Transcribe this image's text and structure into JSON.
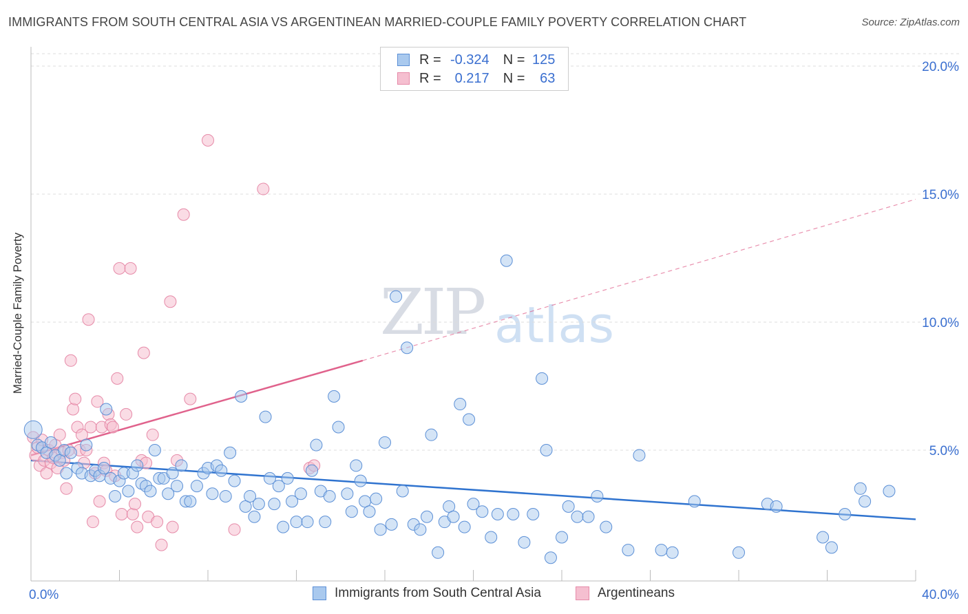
{
  "header": {
    "title": "IMMIGRANTS FROM SOUTH CENTRAL ASIA VS ARGENTINEAN MARRIED-COUPLE FAMILY POVERTY CORRELATION CHART",
    "source": "Source: ZipAtlas.com"
  },
  "watermark": {
    "zip": "ZIP",
    "atlas": "atlas"
  },
  "legend": {
    "r_label": "R =",
    "n_label": "N =",
    "series1": {
      "r": "-0.324",
      "n": "125"
    },
    "series2": {
      "r": "0.217",
      "n": "63"
    }
  },
  "colors": {
    "series1_fill": "#a9c9ee",
    "series1_stroke": "#5b8fd6",
    "series1_line": "#2f73cf",
    "series2_fill": "#f5bfd0",
    "series2_stroke": "#e68aa8",
    "series2_line": "#e0628c",
    "tick_label": "#3a6fd0",
    "grid": "#dddddd"
  },
  "chart_data": {
    "type": "scatter",
    "title": "IMMIGRANTS FROM SOUTH CENTRAL ASIA VS ARGENTINEAN MARRIED-COUPLE FAMILY POVERTY CORRELATION CHART",
    "xlabel": "",
    "ylabel": "Married-Couple Family Poverty",
    "xlim": [
      0,
      40
    ],
    "ylim": [
      0,
      21
    ],
    "x_tick_labels": [
      "0.0%",
      "40.0%"
    ],
    "y_ticks": [
      5,
      10,
      15,
      20
    ],
    "y_tick_labels": [
      "5.0%",
      "10.0%",
      "15.0%",
      "20.0%"
    ],
    "grid": "horizontal dashed",
    "legend_placement": "top-center",
    "series": [
      {
        "name": "Immigrants from South Central Asia",
        "r": -0.324,
        "n": 125,
        "trend": {
          "x": [
            0,
            40
          ],
          "y": [
            4.6,
            2.3
          ]
        },
        "points": [
          [
            0.1,
            5.8
          ],
          [
            0.3,
            5.2
          ],
          [
            0.5,
            5.1
          ],
          [
            0.7,
            4.9
          ],
          [
            0.9,
            5.3
          ],
          [
            1.1,
            4.8
          ],
          [
            1.3,
            4.6
          ],
          [
            1.5,
            5.0
          ],
          [
            1.6,
            4.1
          ],
          [
            1.8,
            4.9
          ],
          [
            2.1,
            4.3
          ],
          [
            2.3,
            4.1
          ],
          [
            2.5,
            5.2
          ],
          [
            2.7,
            4.0
          ],
          [
            2.9,
            4.2
          ],
          [
            3.1,
            4.0
          ],
          [
            3.3,
            4.3
          ],
          [
            3.4,
            6.6
          ],
          [
            3.6,
            3.9
          ],
          [
            3.8,
            3.2
          ],
          [
            4.0,
            3.8
          ],
          [
            4.2,
            4.1
          ],
          [
            4.4,
            3.4
          ],
          [
            4.6,
            4.1
          ],
          [
            4.8,
            4.4
          ],
          [
            5.0,
            3.7
          ],
          [
            5.2,
            3.6
          ],
          [
            5.4,
            3.4
          ],
          [
            5.6,
            5.0
          ],
          [
            5.8,
            3.9
          ],
          [
            6.0,
            3.9
          ],
          [
            6.2,
            3.3
          ],
          [
            6.4,
            4.1
          ],
          [
            6.6,
            3.6
          ],
          [
            6.8,
            4.4
          ],
          [
            7.0,
            3.0
          ],
          [
            7.2,
            3.0
          ],
          [
            7.5,
            3.6
          ],
          [
            7.8,
            4.1
          ],
          [
            8.0,
            4.3
          ],
          [
            8.2,
            3.3
          ],
          [
            8.4,
            4.4
          ],
          [
            8.6,
            4.2
          ],
          [
            8.8,
            3.2
          ],
          [
            9.0,
            4.9
          ],
          [
            9.2,
            3.8
          ],
          [
            9.5,
            7.1
          ],
          [
            9.7,
            2.8
          ],
          [
            9.9,
            3.2
          ],
          [
            10.1,
            2.4
          ],
          [
            10.3,
            2.9
          ],
          [
            10.6,
            6.3
          ],
          [
            10.8,
            3.9
          ],
          [
            11.0,
            2.9
          ],
          [
            11.2,
            3.6
          ],
          [
            11.4,
            2.0
          ],
          [
            11.6,
            3.9
          ],
          [
            11.8,
            3.0
          ],
          [
            12.0,
            2.2
          ],
          [
            12.2,
            3.3
          ],
          [
            12.5,
            2.2
          ],
          [
            12.7,
            4.2
          ],
          [
            12.9,
            5.2
          ],
          [
            13.1,
            3.4
          ],
          [
            13.3,
            2.2
          ],
          [
            13.5,
            3.2
          ],
          [
            13.7,
            7.1
          ],
          [
            13.9,
            5.9
          ],
          [
            14.3,
            3.3
          ],
          [
            14.5,
            2.6
          ],
          [
            14.7,
            4.4
          ],
          [
            14.9,
            3.8
          ],
          [
            15.1,
            3.0
          ],
          [
            15.3,
            2.6
          ],
          [
            15.6,
            3.1
          ],
          [
            15.8,
            1.9
          ],
          [
            16.0,
            5.3
          ],
          [
            16.3,
            2.1
          ],
          [
            16.5,
            11.0
          ],
          [
            16.8,
            3.4
          ],
          [
            17.0,
            9.0
          ],
          [
            17.3,
            2.1
          ],
          [
            17.6,
            1.9
          ],
          [
            17.9,
            2.4
          ],
          [
            18.1,
            5.6
          ],
          [
            18.4,
            1.0
          ],
          [
            18.7,
            2.2
          ],
          [
            18.9,
            2.8
          ],
          [
            19.1,
            2.4
          ],
          [
            19.4,
            6.8
          ],
          [
            19.6,
            2.0
          ],
          [
            19.8,
            6.2
          ],
          [
            20.0,
            2.9
          ],
          [
            20.4,
            2.6
          ],
          [
            20.8,
            1.6
          ],
          [
            21.1,
            2.5
          ],
          [
            21.5,
            12.4
          ],
          [
            21.8,
            2.5
          ],
          [
            22.3,
            1.4
          ],
          [
            22.7,
            2.5
          ],
          [
            23.1,
            7.8
          ],
          [
            23.3,
            5.0
          ],
          [
            23.5,
            0.8
          ],
          [
            24.0,
            1.6
          ],
          [
            24.3,
            2.8
          ],
          [
            24.7,
            2.4
          ],
          [
            25.2,
            2.4
          ],
          [
            25.6,
            3.2
          ],
          [
            26.0,
            2.0
          ],
          [
            27.0,
            1.1
          ],
          [
            27.5,
            4.8
          ],
          [
            28.5,
            1.1
          ],
          [
            29.0,
            1.0
          ],
          [
            30.0,
            3.0
          ],
          [
            32.0,
            1.0
          ],
          [
            33.3,
            2.9
          ],
          [
            33.7,
            2.8
          ],
          [
            35.8,
            1.6
          ],
          [
            36.2,
            1.2
          ],
          [
            36.8,
            2.5
          ],
          [
            37.5,
            3.5
          ],
          [
            37.7,
            3.0
          ],
          [
            38.8,
            3.4
          ]
        ]
      },
      {
        "name": "Argentineans",
        "r": 0.217,
        "n": 63,
        "trend": {
          "x": [
            0,
            15
          ],
          "y": [
            4.8,
            8.5
          ],
          "x_dashed": [
            15,
            40
          ],
          "y_dashed": [
            8.5,
            14.8
          ]
        },
        "points": [
          [
            0.1,
            5.5
          ],
          [
            0.2,
            4.8
          ],
          [
            0.3,
            5.1
          ],
          [
            0.4,
            4.4
          ],
          [
            0.5,
            5.4
          ],
          [
            0.6,
            4.6
          ],
          [
            0.7,
            4.1
          ],
          [
            0.8,
            5.0
          ],
          [
            0.9,
            4.5
          ],
          [
            1.0,
            4.7
          ],
          [
            1.1,
            5.2
          ],
          [
            1.2,
            4.3
          ],
          [
            1.3,
            5.6
          ],
          [
            1.4,
            4.9
          ],
          [
            1.5,
            4.6
          ],
          [
            1.6,
            3.5
          ],
          [
            1.7,
            5.0
          ],
          [
            1.8,
            8.5
          ],
          [
            1.9,
            6.6
          ],
          [
            2.0,
            7.0
          ],
          [
            2.1,
            5.9
          ],
          [
            2.2,
            5.0
          ],
          [
            2.3,
            5.6
          ],
          [
            2.4,
            4.5
          ],
          [
            2.5,
            5.0
          ],
          [
            2.6,
            10.1
          ],
          [
            2.7,
            5.9
          ],
          [
            2.8,
            2.2
          ],
          [
            2.9,
            4.1
          ],
          [
            3.0,
            6.9
          ],
          [
            3.1,
            3.0
          ],
          [
            3.2,
            5.9
          ],
          [
            3.3,
            4.5
          ],
          [
            3.4,
            4.2
          ],
          [
            3.5,
            6.4
          ],
          [
            3.6,
            6.0
          ],
          [
            3.7,
            5.9
          ],
          [
            3.8,
            4.0
          ],
          [
            3.9,
            7.8
          ],
          [
            4.0,
            12.1
          ],
          [
            4.1,
            2.5
          ],
          [
            4.3,
            6.4
          ],
          [
            4.5,
            12.1
          ],
          [
            4.6,
            2.5
          ],
          [
            4.7,
            2.9
          ],
          [
            4.8,
            2.0
          ],
          [
            5.0,
            4.6
          ],
          [
            5.1,
            8.8
          ],
          [
            5.2,
            4.5
          ],
          [
            5.3,
            2.4
          ],
          [
            5.5,
            5.6
          ],
          [
            5.7,
            2.2
          ],
          [
            5.9,
            1.3
          ],
          [
            6.3,
            10.8
          ],
          [
            6.4,
            2.0
          ],
          [
            6.6,
            4.6
          ],
          [
            6.9,
            14.2
          ],
          [
            7.2,
            7.0
          ],
          [
            8.0,
            17.1
          ],
          [
            9.2,
            1.9
          ],
          [
            10.5,
            15.2
          ],
          [
            12.6,
            4.3
          ],
          [
            12.8,
            4.4
          ]
        ]
      }
    ]
  },
  "bottom_legend": {
    "series1_label": "Immigrants from South Central Asia",
    "series2_label": "Argentineans"
  }
}
